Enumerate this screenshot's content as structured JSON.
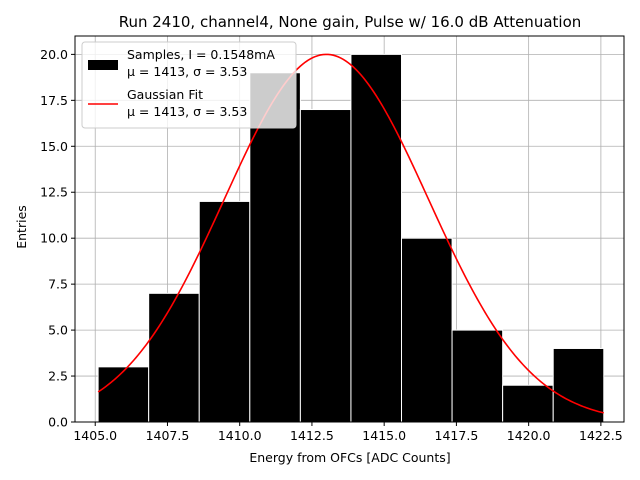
{
  "chart_data": {
    "type": "bar",
    "title": "Run 2410, channel4, None gain, Pulse w/ 16.0 dB Attenuation",
    "xlabel": "Energy from OFCs [ADC Counts]",
    "ylabel": "Entries",
    "xlim": [
      1404.3,
      1423.3
    ],
    "ylim": [
      0,
      21
    ],
    "xticks": [
      "1405.0",
      "1407.5",
      "1410.0",
      "1412.5",
      "1415.0",
      "1417.5",
      "1420.0",
      "1422.5"
    ],
    "xtick_values": [
      1405.0,
      1407.5,
      1410.0,
      1412.5,
      1415.0,
      1417.5,
      1420.0,
      1422.5
    ],
    "yticks": [
      "0.0",
      "2.5",
      "5.0",
      "7.5",
      "10.0",
      "12.5",
      "15.0",
      "17.5",
      "20.0"
    ],
    "ytick_values": [
      0,
      2.5,
      5,
      7.5,
      10,
      12.5,
      15,
      17.5,
      20
    ],
    "grid": true,
    "legend_position": "top-left",
    "histogram": {
      "bin_edges": [
        1405.1,
        1406.85,
        1408.6,
        1410.35,
        1412.1,
        1413.85,
        1415.6,
        1417.35,
        1419.1,
        1420.85,
        1422.6
      ],
      "counts": [
        3,
        7,
        12,
        19,
        17,
        20,
        10,
        5,
        2,
        4
      ],
      "color": "#000000",
      "edge_color": "#ffffff"
    },
    "fit": {
      "mu": 1413,
      "sigma": 3.53,
      "amplitude": 20,
      "x_range": [
        1405.1,
        1422.6
      ],
      "color": "#ff0000"
    },
    "series": [
      {
        "name": "Samples, I = 0.1548mA",
        "sub": "μ = 1413, σ = 3.53"
      },
      {
        "name": "Gaussian Fit",
        "sub": "μ = 1413, σ = 3.53"
      }
    ]
  }
}
